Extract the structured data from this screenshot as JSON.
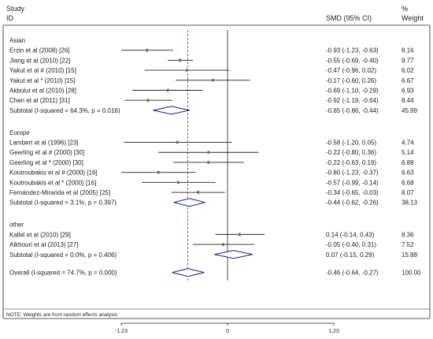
{
  "header": {
    "study": "Study",
    "id": "ID",
    "smd": "SMD (95% CI)",
    "pct": "%",
    "weight": "Weight"
  },
  "note": "NOTE: Weights are from random effects analysis",
  "chart_data": {
    "type": "forest",
    "xlim": [
      -1.23,
      1.23
    ],
    "xticks": [
      "-1.23",
      "0",
      "1.23"
    ],
    "overall_line": -0.46,
    "groups": [
      {
        "name": "Asian",
        "studies": [
          {
            "label": "Erzin et al (2008) [26]",
            "smd": -0.93,
            "lo": -1.23,
            "hi": -0.63,
            "ci": "-0.93 (-1.23, -0.63)",
            "weight": "8.16"
          },
          {
            "label": "Jiang et al (2010) [22]",
            "smd": -0.55,
            "lo": -0.69,
            "hi": -0.4,
            "ci": "-0.55 (-0.69, -0.40)",
            "weight": "9.77"
          },
          {
            "label": "Yakut et al # (2010) [15]",
            "smd": -0.47,
            "lo": -0.96,
            "hi": 0.02,
            "ci": "-0.47 (-0.96, 0.02)",
            "weight": "6.02"
          },
          {
            "label": "Yakut et al * (2010) [15]",
            "smd": -0.17,
            "lo": -0.6,
            "hi": 0.26,
            "ci": "-0.17 (-0.60, 0.26)",
            "weight": "6.67"
          },
          {
            "label": "Akbulut et al (2010) [28]",
            "smd": -0.69,
            "lo": -1.1,
            "hi": -0.29,
            "ci": "-0.69 (-1.10, -0.29)",
            "weight": "6.93"
          },
          {
            "label": "Chen et al (2011) [31]",
            "smd": -0.92,
            "lo": -1.19,
            "hi": -0.64,
            "ci": "-0.92 (-1.19, -0.64)",
            "weight": "8.44"
          }
        ],
        "subtotal": {
          "label": "Subtotal  (I-squared = 64.3%, p = 0.016)",
          "smd": -0.65,
          "lo": -0.86,
          "hi": -0.44,
          "ci": "-0.65 (-0.86, -0.44)",
          "weight": "45.99"
        }
      },
      {
        "name": "Europe",
        "studies": [
          {
            "label": "Lambert et al (1996) [23]",
            "smd": -0.58,
            "lo": -1.2,
            "hi": 0.05,
            "ci": "-0.58 (-1.20, 0.05)",
            "weight": "4.74"
          },
          {
            "label": "Geerling et al # (2000) [30]",
            "smd": -0.22,
            "lo": -0.8,
            "hi": 0.36,
            "ci": "-0.22 (-0.80, 0.36)",
            "weight": "5.14"
          },
          {
            "label": "Geerling et al * (2000) [30]",
            "smd": -0.22,
            "lo": -0.63,
            "hi": 0.19,
            "ci": "-0.22 (-0.63, 0.19)",
            "weight": "6.88"
          },
          {
            "label": "Koutroubakis et al # (2000) [16]",
            "smd": -0.8,
            "lo": -1.23,
            "hi": -0.37,
            "ci": "-0.80 (-1.23, -0.37)",
            "weight": "6.63"
          },
          {
            "label": "Koutroubakis et al * (2000) [16]",
            "smd": -0.57,
            "lo": -0.99,
            "hi": -0.14,
            "ci": "-0.57 (-0.99, -0.14)",
            "weight": "6.68"
          },
          {
            "label": "Fernández-Miranda et al (2005) [25]",
            "smd": -0.34,
            "lo": -0.65,
            "hi": -0.03,
            "ci": "-0.34 (-0.65, -0.03)",
            "weight": "8.07"
          }
        ],
        "subtotal": {
          "label": "Subtotal  (I-squared = 3.1%, p = 0.397)",
          "smd": -0.44,
          "lo": -0.62,
          "hi": -0.26,
          "ci": "-0.44 (-0.62, -0.26)",
          "weight": "38.13"
        }
      },
      {
        "name": "other",
        "studies": [
          {
            "label": "Kallel et al (2010) [29]",
            "smd": 0.14,
            "lo": -0.14,
            "hi": 0.43,
            "ci": "0.14 (-0.14, 0.43)",
            "weight": "8.36"
          },
          {
            "label": "Alkhouri et al (2013) [27]",
            "smd": -0.05,
            "lo": -0.4,
            "hi": 0.31,
            "ci": "-0.05 (-0.40, 0.31)",
            "weight": "7.52"
          }
        ],
        "subtotal": {
          "label": "Subtotal  (I-squared = 0.0%, p = 0.406)",
          "smd": 0.07,
          "lo": -0.15,
          "hi": 0.29,
          "ci": "0.07 (-0.15, 0.29)",
          "weight": "15.88"
        }
      }
    ],
    "overall": {
      "label": "Overall  (I-squared = 74.7%, p = 0.000)",
      "smd": -0.46,
      "lo": -0.64,
      "hi": -0.27,
      "ci": "-0.46 (-0.64, -0.27)",
      "weight": "100.00"
    },
    "colors": {
      "diamond": "#1a1a80",
      "overall_line": "#c0304a",
      "marker": "#555555",
      "box": "#c8c8c8"
    }
  }
}
